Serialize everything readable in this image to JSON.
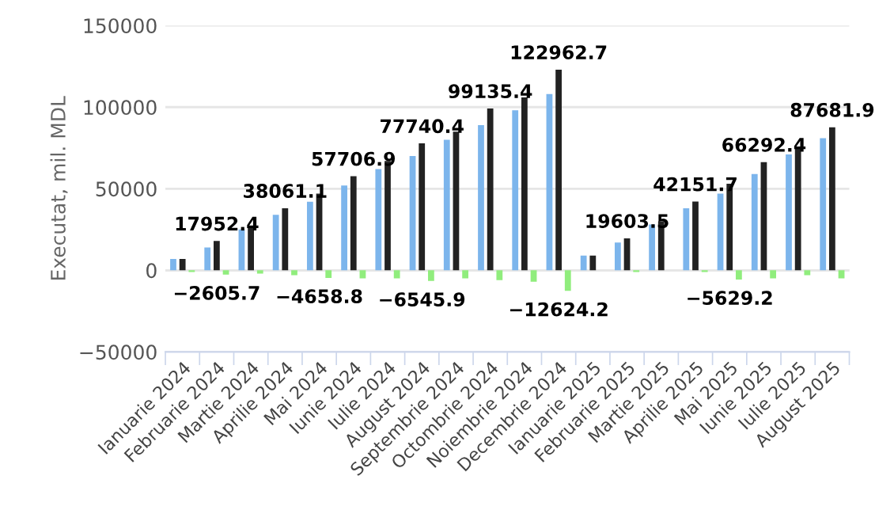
{
  "chart_data": {
    "type": "bar",
    "ylabel": "Executat, mil. MDL",
    "categories": [
      "Ianuarie 2024",
      "Februarie 2024",
      "Martie 2024",
      "Aprilie 2024",
      "Mai 2024",
      "Iunie 2024",
      "Iulie 2024",
      "August 2024",
      "Septembrie 2024",
      "Octombrie 2024",
      "Noiembrie 2024",
      "Decembrie 2024",
      "Ianuarie 2025",
      "Februarie 2025",
      "Martie 2025",
      "Aprilie 2025",
      "Mai 2025",
      "Iunie 2025",
      "Iulie 2025",
      "August 2025"
    ],
    "series": [
      {
        "color": "#7cb5ec",
        "values": [
          7000,
          14000,
          25000,
          34000,
          42000,
          52000,
          62000,
          70000,
          80000,
          89000,
          98000,
          108000,
          9000,
          17000,
          28000,
          38000,
          47000,
          59000,
          71000,
          81000
        ]
      },
      {
        "color": "#222222",
        "values": [
          7000,
          17952.4,
          27000,
          38061.1,
          47000,
          57706.9,
          67000,
          77740.4,
          85000,
          99135.4,
          106000,
          122962.7,
          9000,
          19603.5,
          30000,
          42151.7,
          53000,
          66292.4,
          75000,
          87681.9
        ],
        "value_labels": [
          null,
          "17952.4",
          null,
          "38061.1",
          null,
          "57706.9",
          null,
          "77740.4",
          null,
          "99135.4",
          null,
          "122962.7",
          null,
          "19603.5",
          null,
          "42151.7",
          null,
          "66292.4",
          null,
          "87681.9"
        ]
      },
      {
        "color": "#90ed7d",
        "values": [
          -1000,
          -2605.7,
          -2000,
          -3000,
          -4658.8,
          -5000,
          -5000,
          -6545.9,
          -5000,
          -6000,
          -7000,
          -12624.2,
          0,
          -1000,
          0,
          -1000,
          -5629.2,
          -5000,
          -3000,
          -5000
        ],
        "value_labels": [
          null,
          "−2605.7",
          null,
          null,
          "−4658.8",
          null,
          null,
          "−6545.9",
          null,
          null,
          null,
          "−12624.2",
          null,
          null,
          null,
          null,
          "−5629.2",
          null,
          null,
          null
        ]
      }
    ],
    "ylim": [
      -50000,
      150000
    ],
    "yticks": [
      {
        "value": -50000,
        "label": "−50000"
      },
      0,
      50000,
      100000,
      150000
    ],
    "grid": "y",
    "legend": false
  }
}
